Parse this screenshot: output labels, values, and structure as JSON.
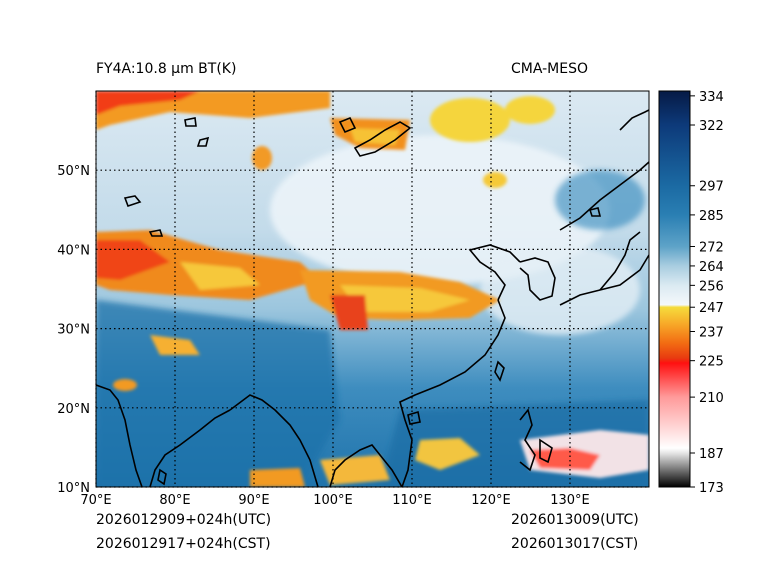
{
  "header": {
    "product_title": "FY4A:10.8 μm BT(K)",
    "model_name": "CMA-MESO"
  },
  "footer": {
    "init_utc": "2026012909+024h(UTC)",
    "init_cst": "2026012917+024h(CST)",
    "valid_utc": "2026013009(UTC)",
    "valid_cst": "2026013017(CST)"
  },
  "map": {
    "lon_range": [
      70,
      140
    ],
    "lat_range": [
      10,
      60
    ],
    "lon_ticks": [
      70,
      80,
      90,
      100,
      110,
      120,
      130
    ],
    "lon_tick_labels": [
      "70°E",
      "80°E",
      "90°E",
      "100°E",
      "110°E",
      "120°E",
      "130°E"
    ],
    "lat_ticks": [
      10,
      20,
      30,
      40,
      50
    ],
    "lat_tick_labels": [
      "10°N",
      "20°N",
      "30°N",
      "40°N",
      "50°N"
    ],
    "gridlines": "dotted"
  },
  "colorbar": {
    "range": [
      173,
      336
    ],
    "tick_values": [
      173,
      187,
      210,
      225,
      237,
      247,
      256,
      264,
      272,
      285,
      297,
      322,
      334
    ],
    "tick_labels": [
      "173",
      "187",
      "210",
      "225",
      "237",
      "247",
      "256",
      "264",
      "272",
      "285",
      "297",
      "322",
      "334"
    ],
    "color_stops": [
      {
        "value": 173,
        "color": "#000000"
      },
      {
        "value": 187,
        "color": "#e6e6e6"
      },
      {
        "value": 189,
        "color": "#ffffff"
      },
      {
        "value": 210,
        "color": "#ff9a9a"
      },
      {
        "value": 224,
        "color": "#ff1010"
      },
      {
        "value": 226,
        "color": "#e83a10"
      },
      {
        "value": 232,
        "color": "#f26a12"
      },
      {
        "value": 240,
        "color": "#f7a828"
      },
      {
        "value": 247,
        "color": "#f5dc3c"
      },
      {
        "value": 248,
        "color": "#f4f8fb"
      },
      {
        "value": 256,
        "color": "#dbeaf2"
      },
      {
        "value": 264,
        "color": "#a9cde0"
      },
      {
        "value": 272,
        "color": "#5ea3c8"
      },
      {
        "value": 285,
        "color": "#2a7fb3"
      },
      {
        "value": 297,
        "color": "#1b6aa3"
      },
      {
        "value": 322,
        "color": "#0d3a7a"
      },
      {
        "value": 336,
        "color": "#061a45"
      }
    ]
  }
}
